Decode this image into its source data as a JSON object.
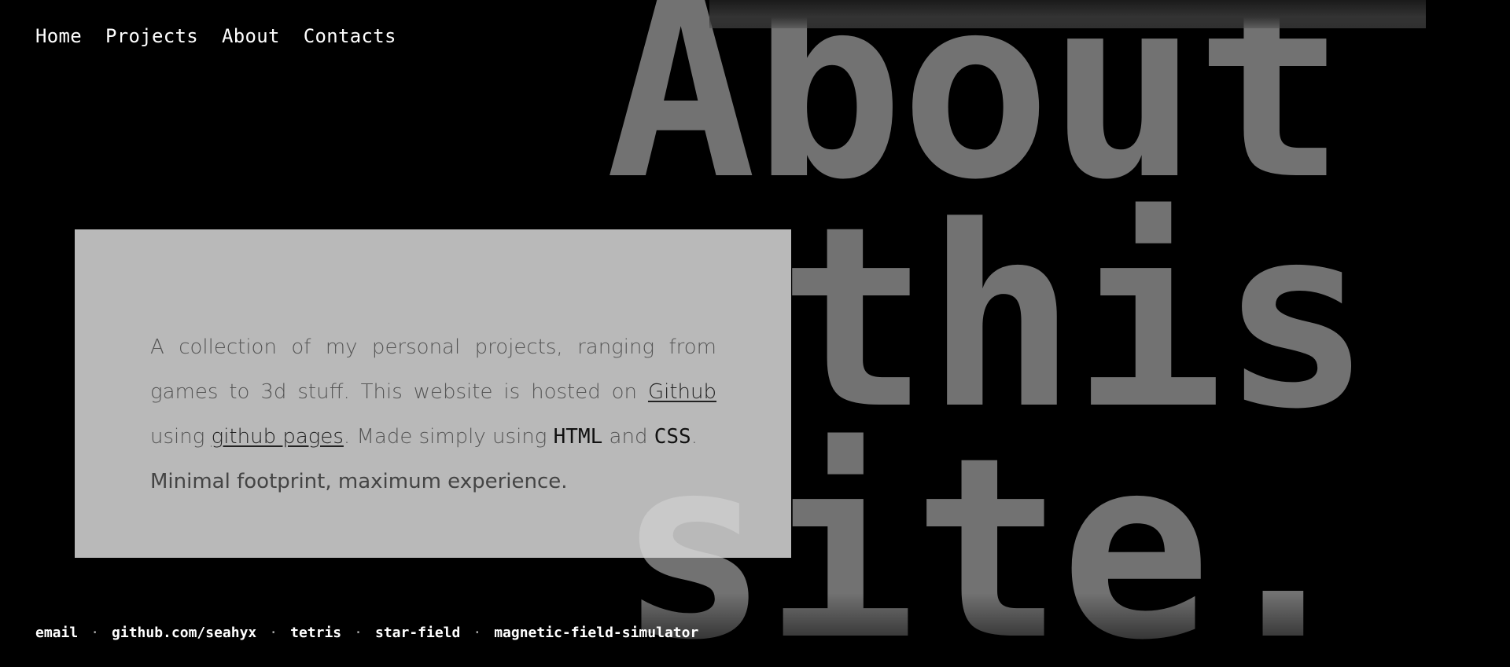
{
  "nav": {
    "items": [
      {
        "label": "Home"
      },
      {
        "label": "Projects"
      },
      {
        "label": "About"
      },
      {
        "label": "Contacts"
      }
    ]
  },
  "hero": {
    "line1": "About",
    "line2": "this",
    "line3": "site."
  },
  "card": {
    "text_1": "A collection of my personal projects, ranging from games to 3d stuff. This website is hosted on ",
    "link_github": "Github",
    "text_2": " using ",
    "link_pages": "github pages",
    "text_3": ". Made simply using ",
    "code_html": "HTML",
    "text_4": " and ",
    "code_css": "CSS",
    "text_5": ".",
    "tagline": "Minimal footprint, maximum experience."
  },
  "footer": {
    "separator": "·",
    "links": [
      {
        "label": "email"
      },
      {
        "label": "github.com/seahyx"
      },
      {
        "label": "tetris"
      },
      {
        "label": "star-field"
      },
      {
        "label": "magnetic-field-simulator"
      }
    ]
  },
  "colors": {
    "background": "#000000",
    "hero_text": "#727272",
    "card_bg": "#d7d7d7",
    "nav_text": "#ffffff"
  }
}
